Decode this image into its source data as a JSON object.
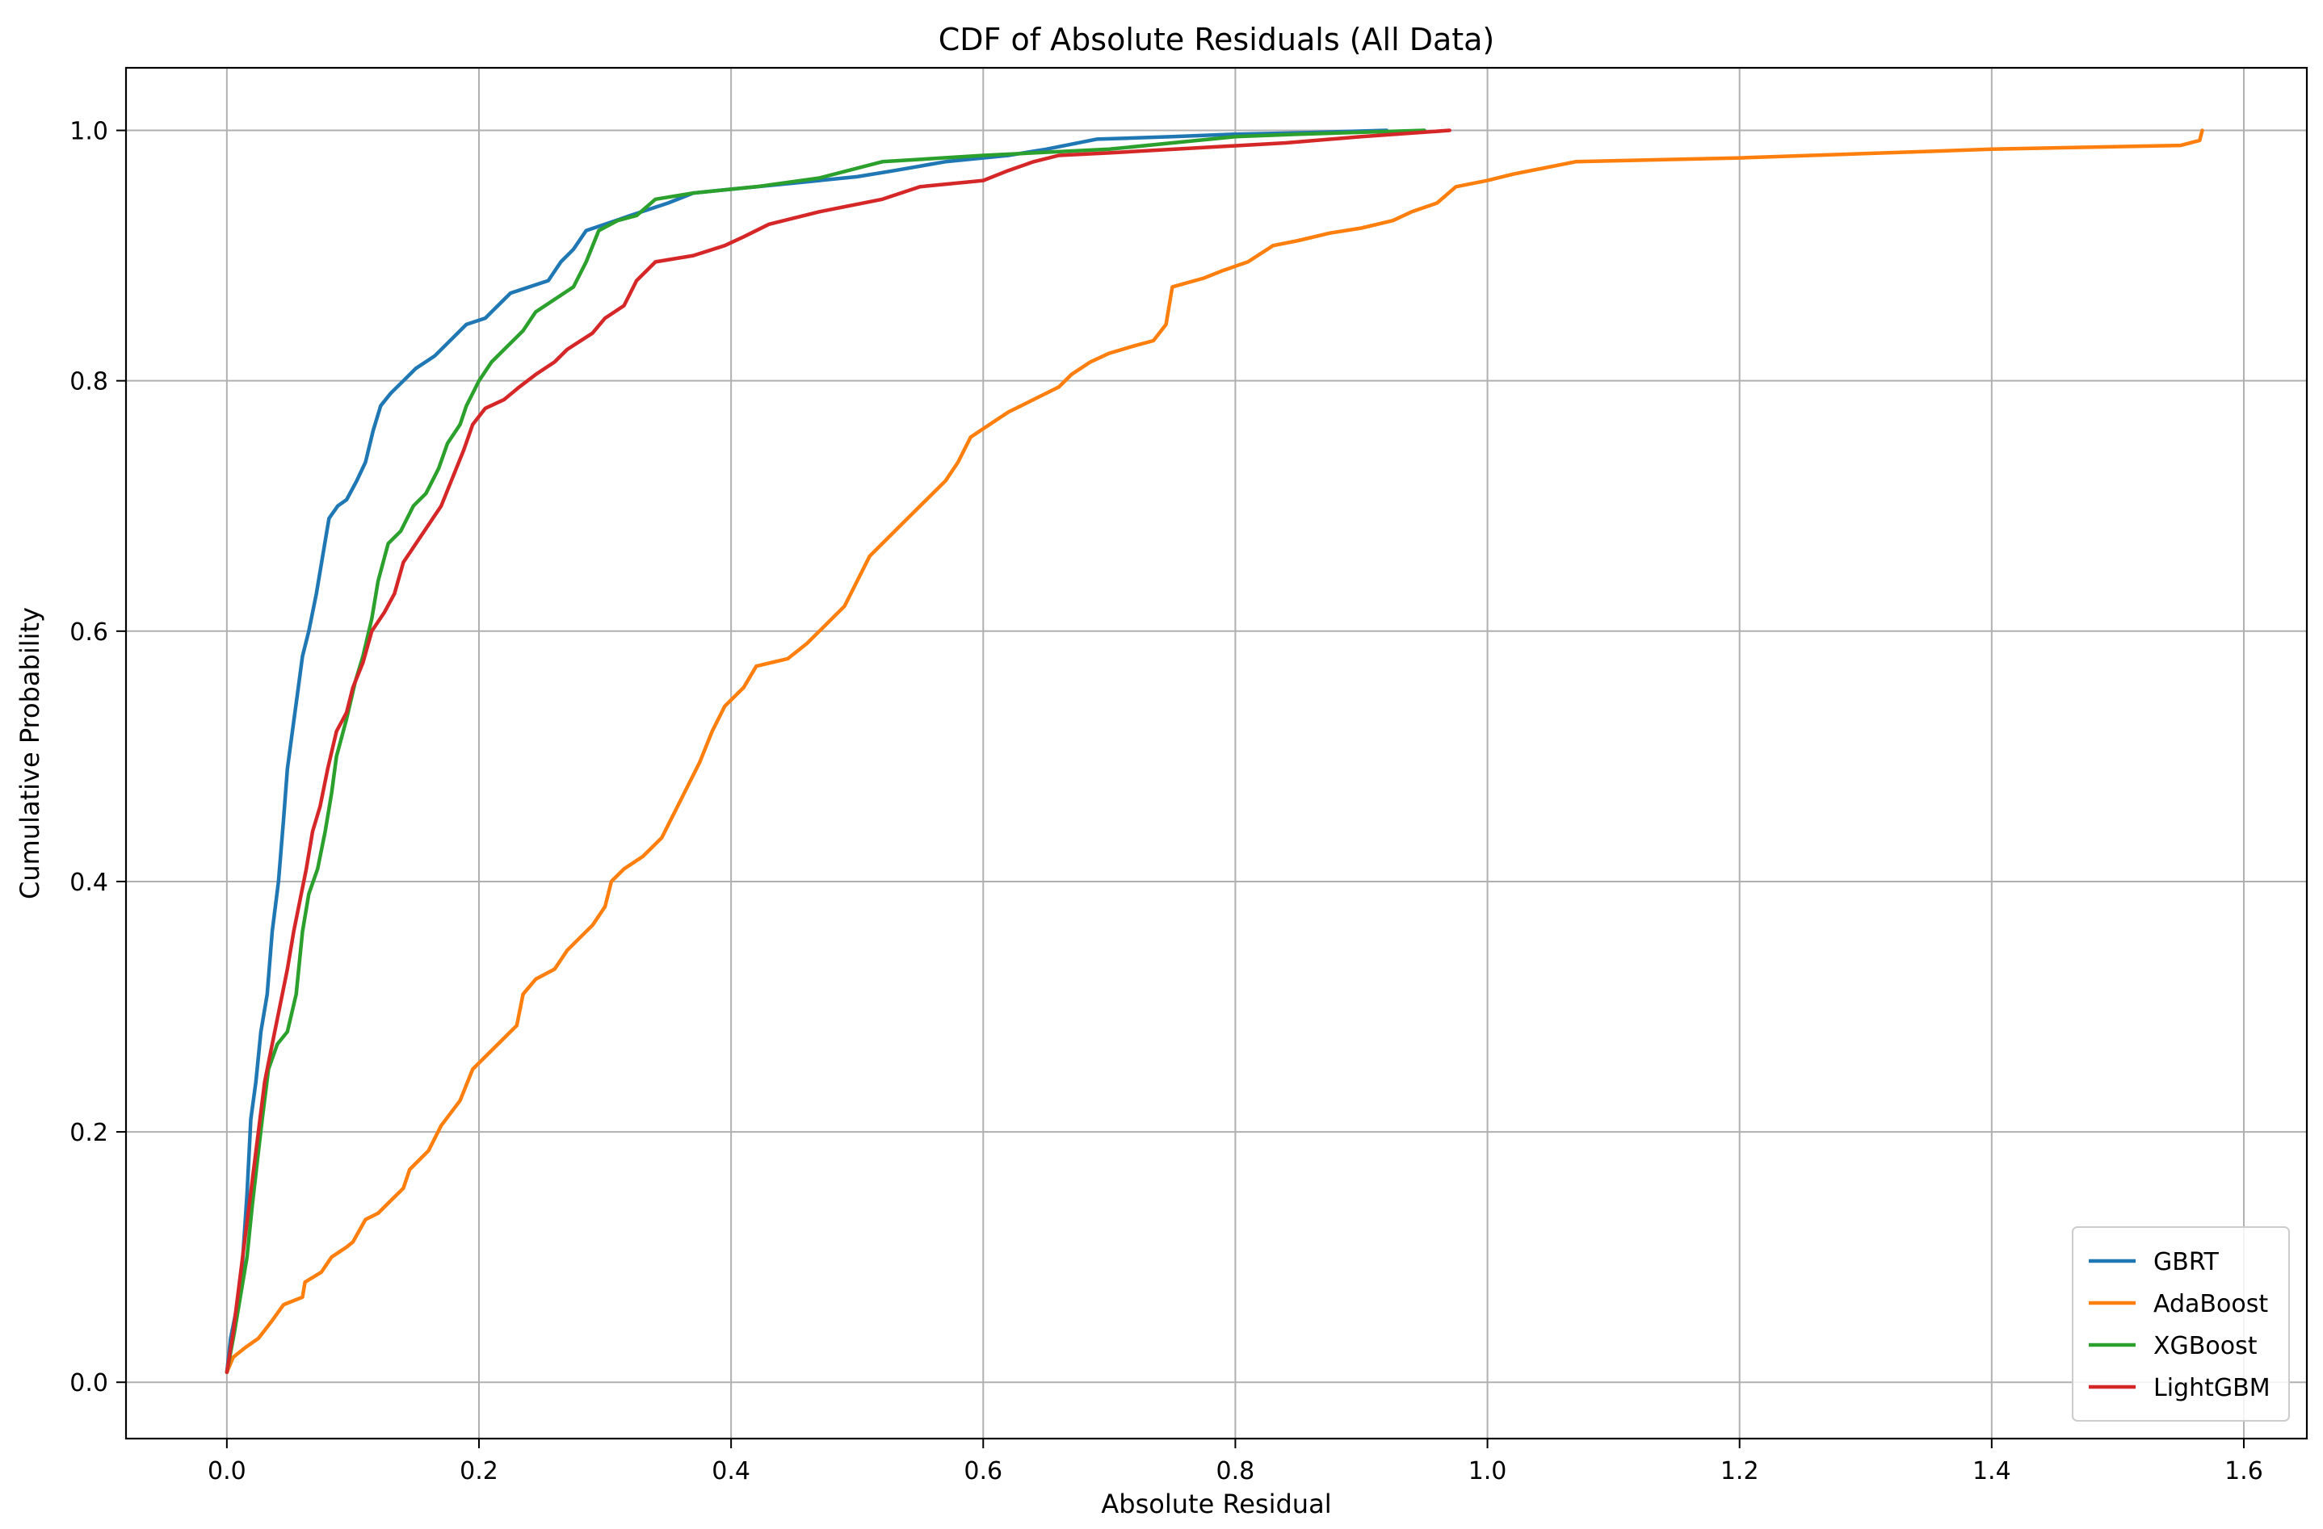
{
  "chart_data": {
    "type": "line",
    "title": "CDF of Absolute Residuals (All Data)",
    "xlabel": "Absolute Residual",
    "ylabel": "Cumulative Probability",
    "xlim": [
      -0.08,
      1.65
    ],
    "ylim": [
      -0.045,
      1.05
    ],
    "xticks": [
      0.0,
      0.2,
      0.4,
      0.6,
      0.8,
      1.0,
      1.2,
      1.4,
      1.6
    ],
    "xtick_labels": [
      "0.0",
      "0.2",
      "0.4",
      "0.6",
      "0.8",
      "1.0",
      "1.2",
      "1.4",
      "1.6"
    ],
    "yticks": [
      0.0,
      0.2,
      0.4,
      0.6,
      0.8,
      1.0
    ],
    "ytick_labels": [
      "0.0",
      "0.2",
      "0.4",
      "0.6",
      "0.8",
      "1.0"
    ],
    "grid": true,
    "legend_position": "lower-right",
    "series": [
      {
        "name": "GBRT",
        "color": "#1f77b4",
        "points": [
          [
            0.0,
            0.008
          ],
          [
            0.003,
            0.035
          ],
          [
            0.008,
            0.06
          ],
          [
            0.012,
            0.09
          ],
          [
            0.016,
            0.15
          ],
          [
            0.019,
            0.21
          ],
          [
            0.023,
            0.24
          ],
          [
            0.027,
            0.28
          ],
          [
            0.032,
            0.31
          ],
          [
            0.036,
            0.36
          ],
          [
            0.041,
            0.4
          ],
          [
            0.045,
            0.45
          ],
          [
            0.048,
            0.49
          ],
          [
            0.052,
            0.52
          ],
          [
            0.056,
            0.55
          ],
          [
            0.06,
            0.58
          ],
          [
            0.065,
            0.6
          ],
          [
            0.071,
            0.63
          ],
          [
            0.076,
            0.66
          ],
          [
            0.081,
            0.69
          ],
          [
            0.088,
            0.7
          ],
          [
            0.095,
            0.705
          ],
          [
            0.103,
            0.72
          ],
          [
            0.11,
            0.735
          ],
          [
            0.116,
            0.76
          ],
          [
            0.122,
            0.78
          ],
          [
            0.13,
            0.79
          ],
          [
            0.14,
            0.8
          ],
          [
            0.15,
            0.81
          ],
          [
            0.165,
            0.82
          ],
          [
            0.175,
            0.83
          ],
          [
            0.19,
            0.845
          ],
          [
            0.205,
            0.85
          ],
          [
            0.215,
            0.86
          ],
          [
            0.225,
            0.87
          ],
          [
            0.24,
            0.875
          ],
          [
            0.255,
            0.88
          ],
          [
            0.265,
            0.895
          ],
          [
            0.275,
            0.905
          ],
          [
            0.285,
            0.92
          ],
          [
            0.3,
            0.925
          ],
          [
            0.32,
            0.932
          ],
          [
            0.35,
            0.942
          ],
          [
            0.37,
            0.95
          ],
          [
            0.4,
            0.953
          ],
          [
            0.45,
            0.958
          ],
          [
            0.5,
            0.963
          ],
          [
            0.53,
            0.968
          ],
          [
            0.57,
            0.975
          ],
          [
            0.62,
            0.98
          ],
          [
            0.65,
            0.985
          ],
          [
            0.69,
            0.993
          ],
          [
            0.75,
            0.995
          ],
          [
            0.8,
            0.997
          ],
          [
            0.85,
            0.998
          ],
          [
            0.92,
            1.0
          ]
        ]
      },
      {
        "name": "AdaBoost",
        "color": "#ff7f0e",
        "points": [
          [
            0.0,
            0.008
          ],
          [
            0.005,
            0.02
          ],
          [
            0.015,
            0.028
          ],
          [
            0.025,
            0.035
          ],
          [
            0.035,
            0.048
          ],
          [
            0.045,
            0.062
          ],
          [
            0.06,
            0.068
          ],
          [
            0.062,
            0.08
          ],
          [
            0.075,
            0.088
          ],
          [
            0.083,
            0.1
          ],
          [
            0.095,
            0.108
          ],
          [
            0.1,
            0.112
          ],
          [
            0.11,
            0.13
          ],
          [
            0.12,
            0.135
          ],
          [
            0.13,
            0.145
          ],
          [
            0.14,
            0.155
          ],
          [
            0.145,
            0.17
          ],
          [
            0.16,
            0.185
          ],
          [
            0.17,
            0.205
          ],
          [
            0.185,
            0.225
          ],
          [
            0.195,
            0.25
          ],
          [
            0.205,
            0.26
          ],
          [
            0.215,
            0.27
          ],
          [
            0.23,
            0.285
          ],
          [
            0.235,
            0.31
          ],
          [
            0.245,
            0.322
          ],
          [
            0.26,
            0.33
          ],
          [
            0.27,
            0.345
          ],
          [
            0.28,
            0.355
          ],
          [
            0.29,
            0.365
          ],
          [
            0.3,
            0.38
          ],
          [
            0.305,
            0.4
          ],
          [
            0.315,
            0.41
          ],
          [
            0.33,
            0.42
          ],
          [
            0.345,
            0.435
          ],
          [
            0.355,
            0.455
          ],
          [
            0.365,
            0.475
          ],
          [
            0.375,
            0.495
          ],
          [
            0.385,
            0.52
          ],
          [
            0.395,
            0.54
          ],
          [
            0.41,
            0.555
          ],
          [
            0.42,
            0.572
          ],
          [
            0.445,
            0.578
          ],
          [
            0.46,
            0.59
          ],
          [
            0.475,
            0.605
          ],
          [
            0.49,
            0.62
          ],
          [
            0.5,
            0.64
          ],
          [
            0.51,
            0.66
          ],
          [
            0.525,
            0.675
          ],
          [
            0.54,
            0.69
          ],
          [
            0.555,
            0.705
          ],
          [
            0.57,
            0.72
          ],
          [
            0.58,
            0.735
          ],
          [
            0.59,
            0.755
          ],
          [
            0.605,
            0.765
          ],
          [
            0.62,
            0.775
          ],
          [
            0.64,
            0.785
          ],
          [
            0.66,
            0.795
          ],
          [
            0.67,
            0.805
          ],
          [
            0.685,
            0.815
          ],
          [
            0.7,
            0.822
          ],
          [
            0.72,
            0.828
          ],
          [
            0.735,
            0.832
          ],
          [
            0.745,
            0.845
          ],
          [
            0.75,
            0.875
          ],
          [
            0.775,
            0.882
          ],
          [
            0.79,
            0.888
          ],
          [
            0.81,
            0.895
          ],
          [
            0.83,
            0.908
          ],
          [
            0.85,
            0.912
          ],
          [
            0.875,
            0.918
          ],
          [
            0.9,
            0.922
          ],
          [
            0.925,
            0.928
          ],
          [
            0.94,
            0.935
          ],
          [
            0.96,
            0.942
          ],
          [
            0.975,
            0.955
          ],
          [
            1.0,
            0.96
          ],
          [
            1.02,
            0.965
          ],
          [
            1.07,
            0.975
          ],
          [
            1.2,
            0.978
          ],
          [
            1.4,
            0.985
          ],
          [
            1.55,
            0.988
          ],
          [
            1.565,
            0.992
          ],
          [
            1.567,
            1.0
          ]
        ]
      },
      {
        "name": "XGBoost",
        "color": "#2ca02c",
        "points": [
          [
            0.0,
            0.008
          ],
          [
            0.006,
            0.04
          ],
          [
            0.011,
            0.07
          ],
          [
            0.016,
            0.1
          ],
          [
            0.02,
            0.14
          ],
          [
            0.024,
            0.175
          ],
          [
            0.028,
            0.21
          ],
          [
            0.033,
            0.25
          ],
          [
            0.04,
            0.27
          ],
          [
            0.048,
            0.28
          ],
          [
            0.055,
            0.31
          ],
          [
            0.06,
            0.36
          ],
          [
            0.065,
            0.39
          ],
          [
            0.072,
            0.41
          ],
          [
            0.078,
            0.44
          ],
          [
            0.083,
            0.47
          ],
          [
            0.087,
            0.5
          ],
          [
            0.095,
            0.53
          ],
          [
            0.102,
            0.56
          ],
          [
            0.108,
            0.58
          ],
          [
            0.115,
            0.61
          ],
          [
            0.12,
            0.64
          ],
          [
            0.128,
            0.67
          ],
          [
            0.138,
            0.68
          ],
          [
            0.148,
            0.7
          ],
          [
            0.158,
            0.71
          ],
          [
            0.168,
            0.73
          ],
          [
            0.175,
            0.75
          ],
          [
            0.185,
            0.765
          ],
          [
            0.19,
            0.78
          ],
          [
            0.2,
            0.8
          ],
          [
            0.21,
            0.815
          ],
          [
            0.22,
            0.825
          ],
          [
            0.235,
            0.84
          ],
          [
            0.245,
            0.855
          ],
          [
            0.26,
            0.865
          ],
          [
            0.275,
            0.875
          ],
          [
            0.285,
            0.895
          ],
          [
            0.295,
            0.92
          ],
          [
            0.31,
            0.928
          ],
          [
            0.325,
            0.932
          ],
          [
            0.34,
            0.945
          ],
          [
            0.37,
            0.95
          ],
          [
            0.42,
            0.955
          ],
          [
            0.47,
            0.962
          ],
          [
            0.52,
            0.975
          ],
          [
            0.6,
            0.98
          ],
          [
            0.7,
            0.985
          ],
          [
            0.75,
            0.99
          ],
          [
            0.8,
            0.995
          ],
          [
            0.85,
            0.997
          ],
          [
            0.95,
            1.0
          ]
        ]
      },
      {
        "name": "LightGBM",
        "color": "#d62728",
        "points": [
          [
            0.0,
            0.008
          ],
          [
            0.005,
            0.04
          ],
          [
            0.01,
            0.08
          ],
          [
            0.015,
            0.12
          ],
          [
            0.02,
            0.16
          ],
          [
            0.025,
            0.2
          ],
          [
            0.03,
            0.24
          ],
          [
            0.036,
            0.27
          ],
          [
            0.042,
            0.3
          ],
          [
            0.048,
            0.33
          ],
          [
            0.053,
            0.36
          ],
          [
            0.058,
            0.385
          ],
          [
            0.063,
            0.41
          ],
          [
            0.068,
            0.44
          ],
          [
            0.074,
            0.46
          ],
          [
            0.08,
            0.49
          ],
          [
            0.087,
            0.52
          ],
          [
            0.095,
            0.535
          ],
          [
            0.1,
            0.555
          ],
          [
            0.108,
            0.575
          ],
          [
            0.115,
            0.6
          ],
          [
            0.125,
            0.615
          ],
          [
            0.133,
            0.63
          ],
          [
            0.14,
            0.655
          ],
          [
            0.15,
            0.67
          ],
          [
            0.16,
            0.685
          ],
          [
            0.17,
            0.7
          ],
          [
            0.178,
            0.72
          ],
          [
            0.188,
            0.745
          ],
          [
            0.195,
            0.765
          ],
          [
            0.205,
            0.778
          ],
          [
            0.22,
            0.785
          ],
          [
            0.232,
            0.795
          ],
          [
            0.245,
            0.805
          ],
          [
            0.26,
            0.815
          ],
          [
            0.27,
            0.825
          ],
          [
            0.29,
            0.838
          ],
          [
            0.3,
            0.85
          ],
          [
            0.315,
            0.86
          ],
          [
            0.325,
            0.88
          ],
          [
            0.34,
            0.895
          ],
          [
            0.37,
            0.9
          ],
          [
            0.395,
            0.908
          ],
          [
            0.41,
            0.915
          ],
          [
            0.43,
            0.925
          ],
          [
            0.47,
            0.935
          ],
          [
            0.52,
            0.945
          ],
          [
            0.55,
            0.955
          ],
          [
            0.6,
            0.96
          ],
          [
            0.62,
            0.968
          ],
          [
            0.64,
            0.975
          ],
          [
            0.66,
            0.98
          ],
          [
            0.7,
            0.982
          ],
          [
            0.84,
            0.99
          ],
          [
            0.9,
            0.995
          ],
          [
            0.97,
            1.0
          ]
        ]
      }
    ]
  }
}
